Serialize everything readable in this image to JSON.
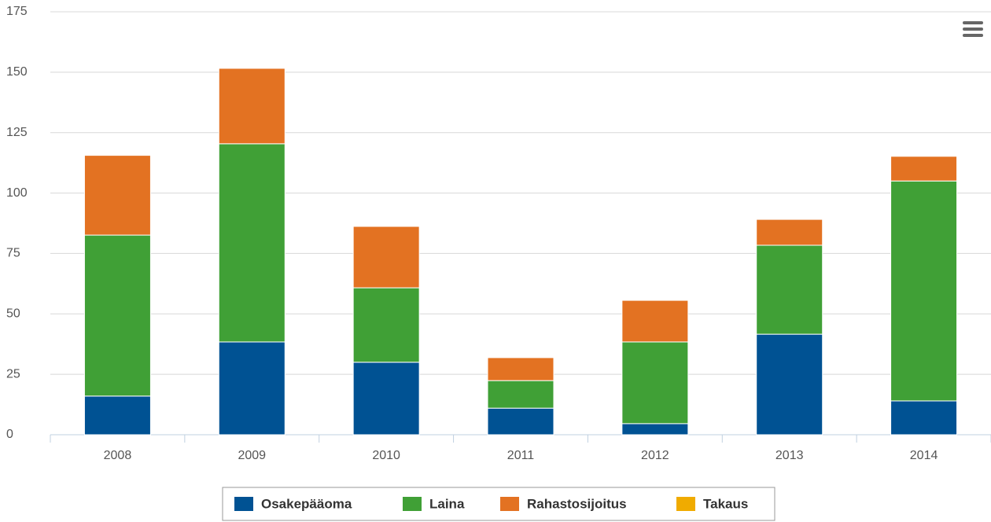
{
  "chart_data": {
    "type": "stacked_bar",
    "categories": [
      "2008",
      "2009",
      "2010",
      "2011",
      "2012",
      "2013",
      "2014"
    ],
    "series": [
      {
        "name": "Osakepääoma",
        "color": "#005293",
        "values": [
          16,
          38.4,
          30,
          11,
          4.6,
          41.6,
          14
        ]
      },
      {
        "name": "Laina",
        "color": "#40a036",
        "values": [
          66.6,
          82,
          30.8,
          11.4,
          33.8,
          36.8,
          91
        ]
      },
      {
        "name": "Rahastosijoitus",
        "color": "#e37222",
        "values": [
          33,
          31.2,
          25.4,
          9.5,
          17.2,
          10.7,
          10.2
        ]
      },
      {
        "name": "Takaus",
        "color": "#f0ab00",
        "values": [
          0,
          0,
          0,
          0,
          0,
          0,
          0
        ]
      }
    ],
    "ylim": [
      0,
      175
    ],
    "yticks": [
      0,
      25,
      50,
      75,
      100,
      125,
      150,
      175
    ],
    "grid": true
  }
}
